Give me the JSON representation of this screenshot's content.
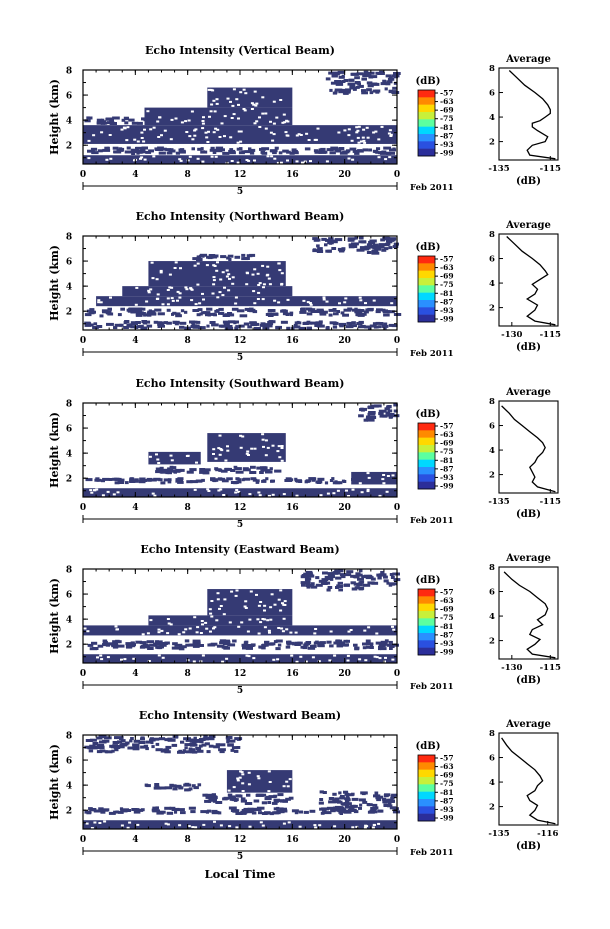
{
  "figure": {
    "x_title": "Local Time",
    "date_label": "Feb 2011",
    "day_label": "5",
    "ylabel": "Height (km)",
    "avg_title": "Average",
    "unit_label": "(dB)",
    "x_ticks": [
      "0",
      "4",
      "8",
      "12",
      "16",
      "20",
      "0"
    ],
    "y_ticks": [
      "2",
      "4",
      "6",
      "8"
    ],
    "colorbar_ticks": [
      "-57",
      "-63",
      "-69",
      "-75",
      "-81",
      "-87",
      "-93",
      "-99"
    ],
    "colors": {
      "echo": "#353a74",
      "colorbar": [
        "#ff2a10",
        "#ff8a00",
        "#ffd800",
        "#c8f03a",
        "#5cffa0",
        "#00d8ff",
        "#2a90ff",
        "#2a50e0",
        "#2b2e9a"
      ]
    }
  },
  "chart_data": [
    {
      "type": "heatmap",
      "title": "Echo Intensity (Vertical Beam)",
      "xlabel": "Local Time",
      "ylabel": "Height (km)",
      "xlim": [
        0,
        24
      ],
      "ylim": [
        0.5,
        8
      ],
      "echo_regions": [
        {
          "t": [
            0,
            24
          ],
          "h": [
            0.5,
            1.2
          ]
        },
        {
          "t": [
            0,
            24
          ],
          "h": [
            1.2,
            1.9
          ],
          "sparse": true
        },
        {
          "t": [
            0,
            24
          ],
          "h": [
            2.1,
            3.6
          ]
        },
        {
          "t": [
            0,
            5
          ],
          "h": [
            3.6,
            4.3
          ],
          "sparse": true
        },
        {
          "t": [
            4.7,
            16
          ],
          "h": [
            3.6,
            5.0
          ]
        },
        {
          "t": [
            9.5,
            16
          ],
          "h": [
            5.0,
            6.6
          ]
        },
        {
          "t": [
            18.5,
            24
          ],
          "h": [
            6.0,
            8.0
          ],
          "sparse": true
        }
      ],
      "average_profile": {
        "xlabel": "(dB)",
        "xlim": [
          -135,
          -112
        ],
        "x_ticks": [
          -135,
          -115
        ],
        "height": [
          0.6,
          0.9,
          1.3,
          1.7,
          2.0,
          2.4,
          2.9,
          3.2,
          3.5,
          3.7,
          4.0,
          4.3,
          4.6,
          5.0,
          5.5,
          6.0,
          6.6,
          7.2,
          7.8
        ],
        "db": [
          -113,
          -123,
          -124,
          -122,
          -117,
          -116,
          -120,
          -122,
          -122,
          -119,
          -117,
          -115,
          -115,
          -116,
          -118,
          -121,
          -125,
          -128,
          -131
        ]
      }
    },
    {
      "type": "heatmap",
      "title": "Echo Intensity (Northward Beam)",
      "xlabel": "Local Time",
      "ylabel": "Height (km)",
      "xlim": [
        0,
        24
      ],
      "ylim": [
        0.5,
        8
      ],
      "echo_regions": [
        {
          "t": [
            0,
            24
          ],
          "h": [
            0.5,
            1.3
          ],
          "sparse": true
        },
        {
          "t": [
            0,
            24
          ],
          "h": [
            1.5,
            2.3
          ],
          "sparse": true
        },
        {
          "t": [
            1,
            24
          ],
          "h": [
            2.4,
            3.2
          ]
        },
        {
          "t": [
            3,
            16
          ],
          "h": [
            3.2,
            4.0
          ]
        },
        {
          "t": [
            5,
            15.5
          ],
          "h": [
            4.0,
            6.0
          ]
        },
        {
          "t": [
            8,
            13
          ],
          "h": [
            6.0,
            6.6
          ],
          "sparse": true
        },
        {
          "t": [
            17.5,
            24
          ],
          "h": [
            6.5,
            8.0
          ],
          "sparse": true
        }
      ],
      "average_profile": {
        "xlabel": "(dB)",
        "xlim": [
          -135,
          -112
        ],
        "x_ticks": [
          -130,
          -115
        ],
        "height": [
          0.6,
          0.9,
          1.3,
          1.8,
          2.2,
          2.7,
          3.1,
          3.5,
          3.9,
          4.3,
          4.7,
          5.0,
          5.5,
          6.0,
          6.6,
          7.2,
          7.8
        ],
        "db": [
          -113,
          -121,
          -124,
          -121,
          -120,
          -124,
          -121,
          -120,
          -122,
          -119,
          -116,
          -117,
          -119,
          -122,
          -126,
          -129,
          -132
        ]
      }
    },
    {
      "type": "heatmap",
      "title": "Echo Intensity (Southward Beam)",
      "xlabel": "Local Time",
      "ylabel": "Height (km)",
      "xlim": [
        0,
        24
      ],
      "ylim": [
        0.5,
        8
      ],
      "echo_regions": [
        {
          "t": [
            0,
            24
          ],
          "h": [
            0.5,
            1.2
          ]
        },
        {
          "t": [
            0,
            22
          ],
          "h": [
            1.5,
            2.1
          ],
          "sparse": true
        },
        {
          "t": [
            20.5,
            24
          ],
          "h": [
            1.5,
            2.5
          ]
        },
        {
          "t": [
            5,
            15
          ],
          "h": [
            2.3,
            3.0
          ],
          "sparse": true
        },
        {
          "t": [
            5,
            9
          ],
          "h": [
            3.1,
            4.1
          ]
        },
        {
          "t": [
            9.5,
            15.5
          ],
          "h": [
            3.3,
            5.6
          ]
        },
        {
          "t": [
            21,
            24
          ],
          "h": [
            6.5,
            8.0
          ],
          "sparse": true
        }
      ],
      "average_profile": {
        "xlabel": "(dB)",
        "xlim": [
          -135,
          -112
        ],
        "x_ticks": [
          -135,
          -115
        ],
        "height": [
          0.6,
          1.0,
          1.4,
          1.8,
          2.2,
          2.6,
          3.0,
          3.4,
          3.8,
          4.2,
          4.6,
          5.0,
          5.5,
          6.0,
          6.5,
          7.0,
          7.6
        ],
        "db": [
          -113,
          -120,
          -122,
          -121,
          -122,
          -123,
          -121,
          -120,
          -118,
          -117,
          -118,
          -120,
          -123,
          -126,
          -129,
          -131,
          -134
        ]
      }
    },
    {
      "type": "heatmap",
      "title": "Echo Intensity (Eastward Beam)",
      "xlabel": "Local Time",
      "ylabel": "Height (km)",
      "xlim": [
        0,
        24
      ],
      "ylim": [
        0.5,
        8
      ],
      "echo_regions": [
        {
          "t": [
            0,
            24
          ],
          "h": [
            0.5,
            1.2
          ]
        },
        {
          "t": [
            0,
            24
          ],
          "h": [
            1.5,
            2.4
          ],
          "sparse": true
        },
        {
          "t": [
            0,
            24
          ],
          "h": [
            2.7,
            3.5
          ]
        },
        {
          "t": [
            5,
            16
          ],
          "h": [
            3.5,
            4.3
          ]
        },
        {
          "t": [
            9.5,
            16
          ],
          "h": [
            4.3,
            6.4
          ]
        },
        {
          "t": [
            16.5,
            24
          ],
          "h": [
            6.2,
            8.0
          ],
          "sparse": true
        }
      ],
      "average_profile": {
        "xlabel": "(dB)",
        "xlim": [
          -135,
          -112
        ],
        "x_ticks": [
          -130,
          -115
        ],
        "height": [
          0.6,
          0.9,
          1.3,
          1.7,
          2.1,
          2.5,
          2.9,
          3.3,
          3.7,
          4.1,
          4.6,
          5.0,
          5.5,
          6.0,
          6.5,
          7.0,
          7.6
        ],
        "db": [
          -113,
          -122,
          -124,
          -121,
          -119,
          -123,
          -122,
          -118,
          -120,
          -117,
          -116,
          -117,
          -120,
          -123,
          -127,
          -130,
          -133
        ]
      }
    },
    {
      "type": "heatmap",
      "title": "Echo Intensity (Westward Beam)",
      "xlabel": "Local Time",
      "ylabel": "Height (km)",
      "xlim": [
        0,
        24
      ],
      "ylim": [
        0.5,
        8
      ],
      "echo_regions": [
        {
          "t": [
            0,
            24
          ],
          "h": [
            0.5,
            1.2
          ]
        },
        {
          "t": [
            0,
            24
          ],
          "h": [
            1.6,
            2.3
          ],
          "sparse": true
        },
        {
          "t": [
            9,
            16
          ],
          "h": [
            2.4,
            3.4
          ],
          "sparse": true
        },
        {
          "t": [
            11,
            16
          ],
          "h": [
            3.4,
            5.2
          ]
        },
        {
          "t": [
            4.5,
            9
          ],
          "h": [
            3.5,
            4.2
          ],
          "sparse": true
        },
        {
          "t": [
            18,
            24
          ],
          "h": [
            2.0,
            3.6
          ],
          "sparse": true
        },
        {
          "t": [
            0,
            12
          ],
          "h": [
            6.5,
            8.0
          ],
          "sparse": true
        }
      ],
      "average_profile": {
        "xlabel": "(dB)",
        "xlim": [
          -135,
          -112
        ],
        "x_ticks": [
          -135,
          -116
        ],
        "height": [
          0.6,
          0.9,
          1.3,
          1.7,
          2.1,
          2.5,
          2.9,
          3.3,
          3.7,
          4.1,
          4.5,
          5.0,
          5.5,
          6.0,
          6.5,
          7.0,
          7.6
        ],
        "db": [
          -113,
          -120,
          -123,
          -121,
          -120,
          -123,
          -124,
          -121,
          -120,
          -118,
          -119,
          -121,
          -124,
          -127,
          -130,
          -132,
          -134
        ]
      }
    }
  ]
}
